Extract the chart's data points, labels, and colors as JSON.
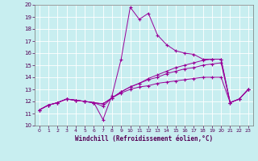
{
  "xlabel": "Windchill (Refroidissement éolien,°C)",
  "xlim": [
    -0.5,
    23.5
  ],
  "ylim": [
    10,
    20
  ],
  "yticks": [
    10,
    11,
    12,
    13,
    14,
    15,
    16,
    17,
    18,
    19,
    20
  ],
  "xticks": [
    0,
    1,
    2,
    3,
    4,
    5,
    6,
    7,
    8,
    9,
    10,
    11,
    12,
    13,
    14,
    15,
    16,
    17,
    18,
    19,
    20,
    21,
    22,
    23
  ],
  "bg_color": "#c8eef0",
  "line_color": "#990099",
  "grid_color": "#aadddd",
  "lines": [
    [
      0,
      11.3,
      1,
      11.7,
      2,
      11.9,
      3,
      12.2,
      4,
      12.1,
      5,
      12.0,
      6,
      11.9,
      7,
      10.5,
      8,
      12.5,
      9,
      15.5,
      10,
      19.8,
      11,
      18.8,
      12,
      19.3,
      13,
      17.5,
      14,
      16.7,
      15,
      16.2,
      16,
      16.0,
      17,
      15.9,
      18,
      15.5,
      19,
      15.5,
      20,
      15.5,
      21,
      11.9,
      22,
      12.2,
      23,
      13.0
    ],
    [
      0,
      11.3,
      1,
      11.7,
      2,
      11.9,
      3,
      12.2,
      4,
      12.1,
      5,
      12.0,
      6,
      11.9,
      7,
      11.8,
      8,
      12.3,
      9,
      12.7,
      10,
      13.0,
      11,
      13.2,
      12,
      13.3,
      13,
      13.5,
      14,
      13.6,
      15,
      13.7,
      16,
      13.8,
      17,
      13.9,
      18,
      14.0,
      19,
      14.0,
      20,
      14.0,
      21,
      11.9,
      22,
      12.2,
      23,
      13.0
    ],
    [
      0,
      11.3,
      1,
      11.7,
      2,
      11.9,
      3,
      12.2,
      4,
      12.1,
      5,
      12.0,
      6,
      11.9,
      7,
      11.8,
      8,
      12.3,
      9,
      12.8,
      10,
      13.2,
      11,
      13.5,
      12,
      13.8,
      13,
      14.0,
      14,
      14.3,
      15,
      14.5,
      16,
      14.7,
      17,
      14.8,
      18,
      15.0,
      19,
      15.1,
      20,
      15.2,
      21,
      11.9,
      22,
      12.2,
      23,
      13.0
    ],
    [
      0,
      11.3,
      1,
      11.7,
      2,
      11.9,
      3,
      12.2,
      4,
      12.1,
      5,
      12.0,
      6,
      11.9,
      7,
      11.6,
      8,
      12.3,
      9,
      12.8,
      10,
      13.2,
      11,
      13.5,
      12,
      13.9,
      13,
      14.2,
      14,
      14.5,
      15,
      14.8,
      16,
      15.0,
      17,
      15.2,
      18,
      15.4,
      19,
      15.5,
      20,
      15.5,
      21,
      11.9,
      22,
      12.2,
      23,
      13.0
    ]
  ]
}
